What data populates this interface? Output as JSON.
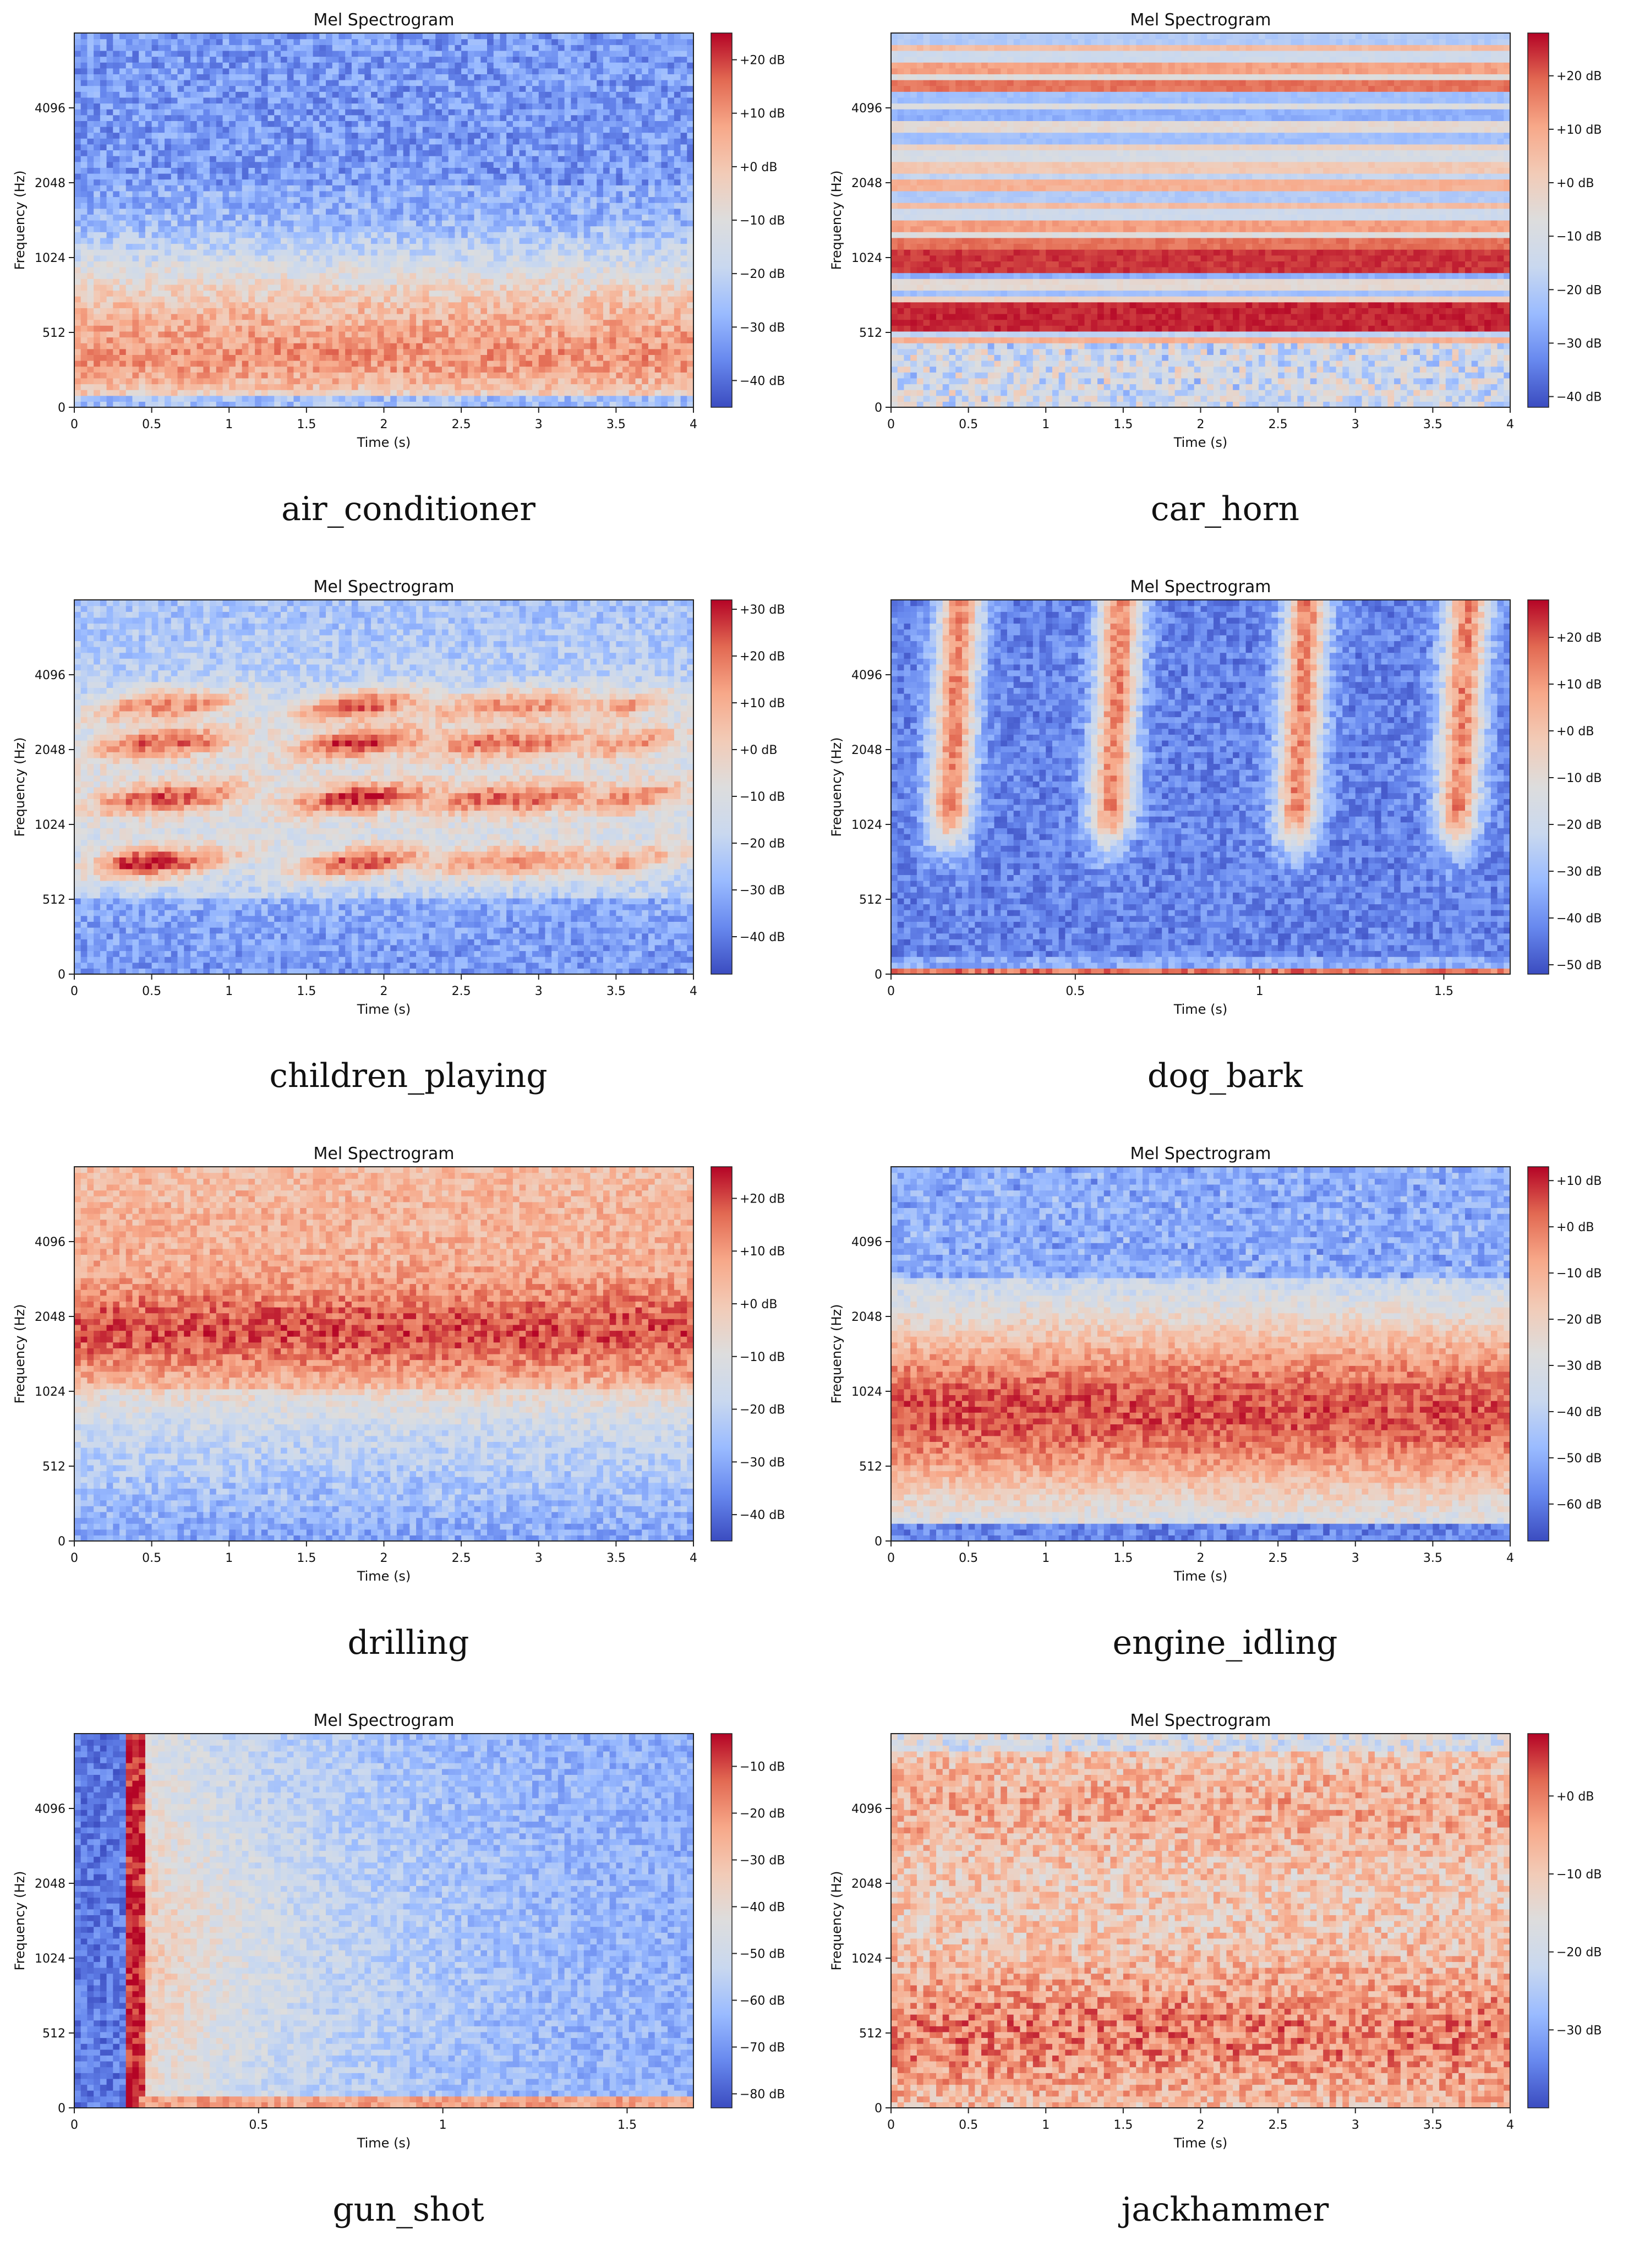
{
  "page": {
    "description_layout": "4 rows x 2 columns of mel spectrogram plots with captions"
  },
  "colormap": {
    "name": "coolwarm",
    "stops": [
      "#3b4cc0",
      "#6788ee",
      "#9abbff",
      "#c9d8ef",
      "#dddddd",
      "#f2cbb7",
      "#f7a889",
      "#e26952",
      "#b40426"
    ]
  },
  "chart_data": [
    {
      "type": "heatmap",
      "title": "Mel Spectrogram",
      "xlabel": "Time (s)",
      "ylabel": "Frequency (Hz)",
      "caption": "air_conditioner",
      "pattern": "ac",
      "x_ticks": [
        0,
        0.5,
        1,
        1.5,
        2,
        2.5,
        3,
        3.5,
        4
      ],
      "x_tick_labels": [
        "0",
        "0.5",
        "1",
        "1.5",
        "2",
        "2.5",
        "3",
        "3.5",
        "4"
      ],
      "xlim": [
        0,
        4
      ],
      "y_ticks": [
        0,
        512,
        1024,
        2048,
        4096
      ],
      "y_tick_labels": [
        "0",
        "512",
        "1024",
        "2048",
        "4096"
      ],
      "colorbar": {
        "dmin": -45,
        "dmax": 25,
        "ticks": [
          20,
          10,
          0,
          -10,
          -20,
          -30,
          -40
        ],
        "labels": [
          "+20 dB",
          "+10 dB",
          "+0 dB",
          "−10 dB",
          "−20 dB",
          "−30 dB",
          "−40 dB"
        ]
      }
    },
    {
      "type": "heatmap",
      "title": "Mel Spectrogram",
      "xlabel": "Time (s)",
      "ylabel": "Frequency (Hz)",
      "caption": "car_horn",
      "pattern": "horn",
      "x_ticks": [
        0,
        0.5,
        1,
        1.5,
        2,
        2.5,
        3,
        3.5,
        4
      ],
      "x_tick_labels": [
        "0",
        "0.5",
        "1",
        "1.5",
        "2",
        "2.5",
        "3",
        "3.5",
        "4"
      ],
      "xlim": [
        0,
        4
      ],
      "y_ticks": [
        0,
        512,
        1024,
        2048,
        4096
      ],
      "y_tick_labels": [
        "0",
        "512",
        "1024",
        "2048",
        "4096"
      ],
      "colorbar": {
        "dmin": -42,
        "dmax": 28,
        "ticks": [
          20,
          10,
          0,
          -10,
          -20,
          -30,
          -40
        ],
        "labels": [
          "+20 dB",
          "+10 dB",
          "+0 dB",
          "−10 dB",
          "−20 dB",
          "−30 dB",
          "−40 dB"
        ]
      }
    },
    {
      "type": "heatmap",
      "title": "Mel Spectrogram",
      "xlabel": "Time (s)",
      "ylabel": "Frequency (Hz)",
      "caption": "children_playing",
      "pattern": "children",
      "x_ticks": [
        0,
        0.5,
        1,
        1.5,
        2,
        2.5,
        3,
        3.5,
        4
      ],
      "x_tick_labels": [
        "0",
        "0.5",
        "1",
        "1.5",
        "2",
        "2.5",
        "3",
        "3.5",
        "4"
      ],
      "xlim": [
        0,
        4
      ],
      "y_ticks": [
        0,
        512,
        1024,
        2048,
        4096
      ],
      "y_tick_labels": [
        "0",
        "512",
        "1024",
        "2048",
        "4096"
      ],
      "colorbar": {
        "dmin": -48,
        "dmax": 32,
        "ticks": [
          30,
          20,
          10,
          0,
          -10,
          -20,
          -30,
          -40
        ],
        "labels": [
          "+30 dB",
          "+20 dB",
          "+10 dB",
          "+0 dB",
          "−10 dB",
          "−20 dB",
          "−30 dB",
          "−40 dB"
        ]
      }
    },
    {
      "type": "heatmap",
      "title": "Mel Spectrogram",
      "xlabel": "Time (s)",
      "ylabel": "Frequency (Hz)",
      "caption": "dog_bark",
      "pattern": "dog",
      "x_ticks": [
        0,
        0.5,
        1,
        1.5
      ],
      "x_tick_labels": [
        "0",
        "0.5",
        "1",
        "1.5"
      ],
      "xlim": [
        0,
        1.68
      ],
      "y_ticks": [
        0,
        512,
        1024,
        2048,
        4096
      ],
      "y_tick_labels": [
        "0",
        "512",
        "1024",
        "2048",
        "4096"
      ],
      "colorbar": {
        "dmin": -52,
        "dmax": 28,
        "ticks": [
          20,
          10,
          0,
          -10,
          -20,
          -30,
          -40,
          -50
        ],
        "labels": [
          "+20 dB",
          "+10 dB",
          "+0 dB",
          "−10 dB",
          "−20 dB",
          "−30 dB",
          "−40 dB",
          "−50 dB"
        ]
      }
    },
    {
      "type": "heatmap",
      "title": "Mel Spectrogram",
      "xlabel": "Time (s)",
      "ylabel": "Frequency (Hz)",
      "caption": "drilling",
      "pattern": "drill",
      "x_ticks": [
        0,
        0.5,
        1,
        1.5,
        2,
        2.5,
        3,
        3.5,
        4
      ],
      "x_tick_labels": [
        "0",
        "0.5",
        "1",
        "1.5",
        "2",
        "2.5",
        "3",
        "3.5",
        "4"
      ],
      "xlim": [
        0,
        4
      ],
      "y_ticks": [
        0,
        512,
        1024,
        2048,
        4096
      ],
      "y_tick_labels": [
        "0",
        "512",
        "1024",
        "2048",
        "4096"
      ],
      "colorbar": {
        "dmin": -45,
        "dmax": 26,
        "ticks": [
          20,
          10,
          0,
          -10,
          -20,
          -30,
          -40
        ],
        "labels": [
          "+20 dB",
          "+10 dB",
          "+0 dB",
          "−10 dB",
          "−20 dB",
          "−30 dB",
          "−40 dB"
        ]
      }
    },
    {
      "type": "heatmap",
      "title": "Mel Spectrogram",
      "xlabel": "Time (s)",
      "ylabel": "Frequency (Hz)",
      "caption": "engine_idling",
      "pattern": "engine",
      "x_ticks": [
        0,
        0.5,
        1,
        1.5,
        2,
        2.5,
        3,
        3.5,
        4
      ],
      "x_tick_labels": [
        "0",
        "0.5",
        "1",
        "1.5",
        "2",
        "2.5",
        "3",
        "3.5",
        "4"
      ],
      "xlim": [
        0,
        4
      ],
      "y_ticks": [
        0,
        512,
        1024,
        2048,
        4096
      ],
      "y_tick_labels": [
        "0",
        "512",
        "1024",
        "2048",
        "4096"
      ],
      "colorbar": {
        "dmin": -68,
        "dmax": 13,
        "ticks": [
          10,
          0,
          -10,
          -20,
          -30,
          -40,
          -50,
          -60
        ],
        "labels": [
          "+10 dB",
          "+0 dB",
          "−10 dB",
          "−20 dB",
          "−30 dB",
          "−40 dB",
          "−50 dB",
          "−60 dB"
        ]
      }
    },
    {
      "type": "heatmap",
      "title": "Mel Spectrogram",
      "xlabel": "Time (s)",
      "ylabel": "Frequency (Hz)",
      "caption": "gun_shot",
      "pattern": "gun",
      "x_ticks": [
        0,
        0.5,
        1,
        1.5
      ],
      "x_tick_labels": [
        "0",
        "0.5",
        "1",
        "1.5"
      ],
      "xlim": [
        0,
        1.68
      ],
      "y_ticks": [
        0,
        512,
        1024,
        2048,
        4096
      ],
      "y_tick_labels": [
        "0",
        "512",
        "1024",
        "2048",
        "4096"
      ],
      "colorbar": {
        "dmin": -83,
        "dmax": -3,
        "ticks": [
          -10,
          -20,
          -30,
          -40,
          -50,
          -60,
          -70,
          -80
        ],
        "labels": [
          "−10 dB",
          "−20 dB",
          "−30 dB",
          "−40 dB",
          "−50 dB",
          "−60 dB",
          "−70 dB",
          "−80 dB"
        ]
      }
    },
    {
      "type": "heatmap",
      "title": "Mel Spectrogram",
      "xlabel": "Time (s)",
      "ylabel": "Frequency (Hz)",
      "caption": "jackhammer",
      "pattern": "jack",
      "x_ticks": [
        0,
        0.5,
        1,
        1.5,
        2,
        2.5,
        3,
        3.5,
        4
      ],
      "x_tick_labels": [
        "0",
        "0.5",
        "1",
        "1.5",
        "2",
        "2.5",
        "3",
        "3.5",
        "4"
      ],
      "xlim": [
        0,
        4
      ],
      "y_ticks": [
        0,
        512,
        1024,
        2048,
        4096
      ],
      "y_tick_labels": [
        "0",
        "512",
        "1024",
        "2048",
        "4096"
      ],
      "colorbar": {
        "dmin": -40,
        "dmax": 8,
        "ticks": [
          0,
          -10,
          -20,
          -30
        ],
        "labels": [
          "+0 dB",
          "−10 dB",
          "−20 dB",
          "−30 dB"
        ]
      }
    }
  ]
}
